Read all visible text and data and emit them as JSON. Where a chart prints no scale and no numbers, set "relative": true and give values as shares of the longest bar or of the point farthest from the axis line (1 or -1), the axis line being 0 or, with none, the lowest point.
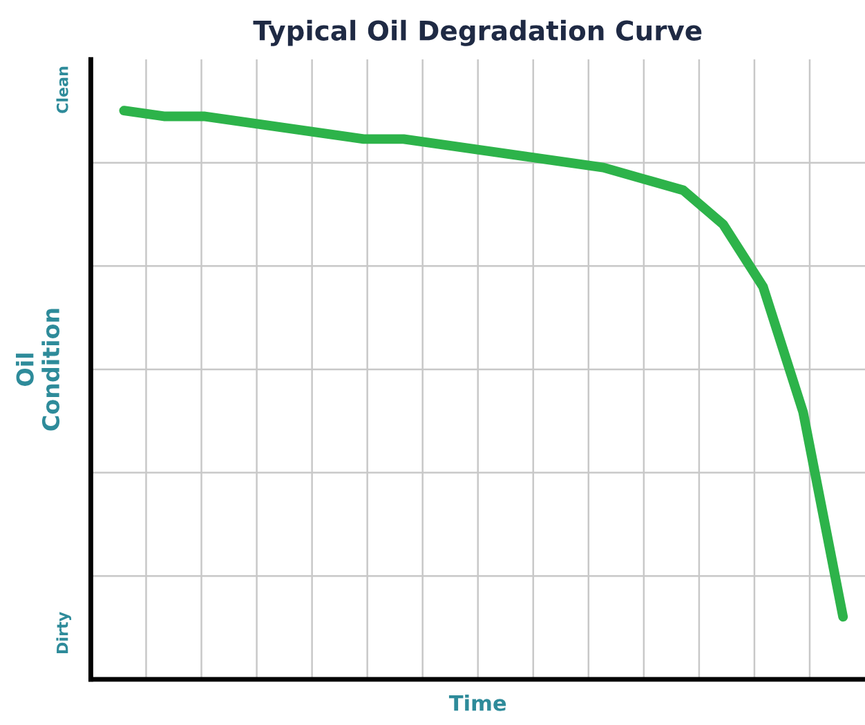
{
  "chart_data": {
    "type": "line",
    "title": "Typical Oil Degradation Curve",
    "xlabel": "Time",
    "ylabel": "Oil\nCondition",
    "relative": true,
    "grid": true,
    "legend": false,
    "marker": "none",
    "line_style": "solid",
    "annotations": [
      "Clean",
      "Dirty"
    ],
    "categories": [
      null,
      null,
      null,
      null,
      null,
      null,
      null,
      null,
      null,
      null,
      null,
      null,
      null,
      null,
      null,
      null,
      null,
      null,
      null
    ],
    "series": [
      {
        "color": "#2db34a",
        "values": [
          1.0,
          0.99,
          0.99,
          0.98,
          0.97,
          0.96,
          0.95,
          0.95,
          0.94,
          0.93,
          0.92,
          0.91,
          0.9,
          0.88,
          0.86,
          0.8,
          0.69,
          0.47,
          0.11
        ]
      }
    ]
  }
}
